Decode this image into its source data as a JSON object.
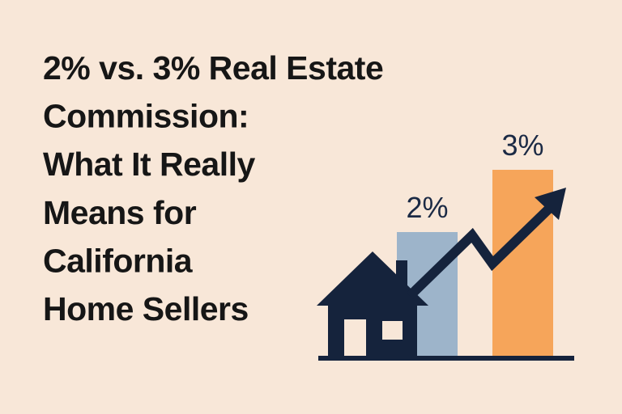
{
  "chart_data": {
    "type": "bar",
    "title": [
      "2% vs. 3% Real Estate",
      "Commission:",
      "What It Really",
      "Means for",
      "California",
      "Home Sellers"
    ],
    "categories": [
      null,
      null
    ],
    "values": [
      2,
      3
    ],
    "value_labels": [
      "2%",
      "3%"
    ],
    "colors": [
      "#9db4ca",
      "#f6a55a"
    ],
    "ylim": [
      0,
      3
    ]
  }
}
